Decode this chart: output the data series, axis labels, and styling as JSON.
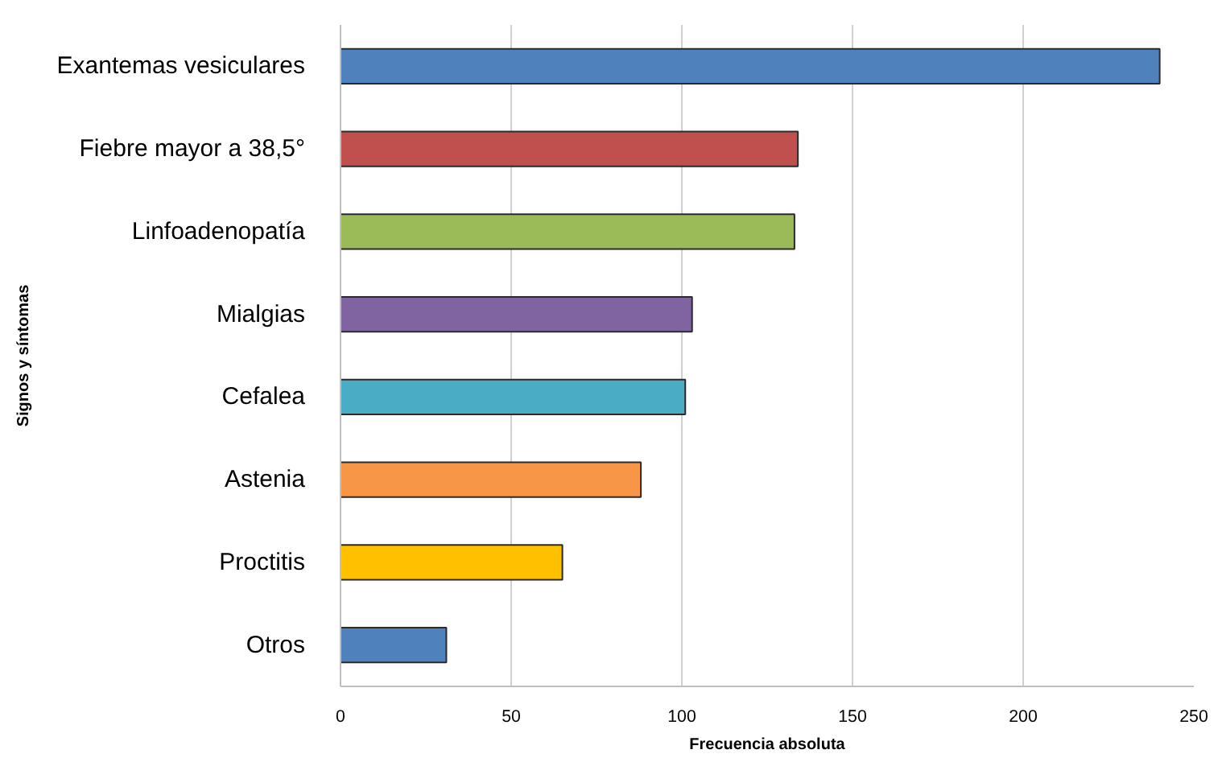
{
  "chart_data": {
    "type": "bar",
    "orientation": "horizontal",
    "xlabel": "Frecuencia absoluta",
    "ylabel": "Signos y síntomas",
    "categories": [
      "Exantemas vesiculares",
      "Fiebre mayor a 38,5°",
      "Linfoadenopatía",
      "Mialgias",
      "Cefalea",
      "Astenia",
      "Proctitis",
      "Otros"
    ],
    "values": [
      240,
      134,
      133,
      103,
      101,
      88,
      65,
      31
    ],
    "colors": [
      "#4f81bd",
      "#c0504d",
      "#9bbb59",
      "#8064a2",
      "#4bacc6",
      "#f79646",
      "#ffc000",
      "#4f81bd"
    ],
    "xlim": [
      0,
      250
    ],
    "xticks": [
      0,
      50,
      100,
      150,
      200,
      250
    ],
    "grid": "x"
  }
}
